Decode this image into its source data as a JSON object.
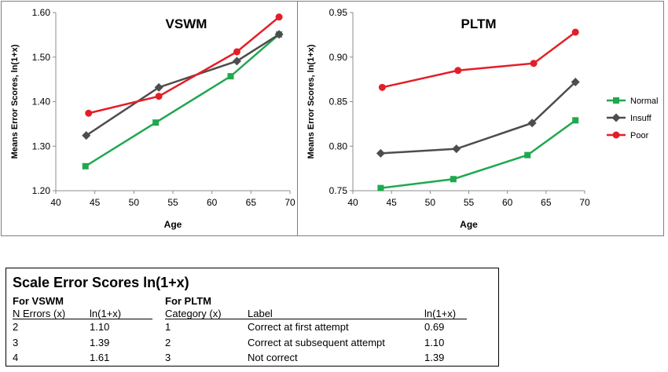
{
  "chart_data": [
    {
      "type": "line",
      "title": "VSWM",
      "xlabel": "Age",
      "ylabel": "Means Error Scores, ln(1+x)",
      "xlim": [
        40,
        70
      ],
      "ylim": [
        1.2,
        1.6
      ],
      "xticks": [
        "40",
        "45",
        "50",
        "55",
        "60",
        "65",
        "70"
      ],
      "yticks": [
        "1.20",
        "1.30",
        "1.40",
        "1.50",
        "1.60"
      ],
      "series": [
        {
          "name": "Normal",
          "color": "#1fa84f",
          "marker": "square",
          "x": [
            43.8,
            52.8,
            62.4,
            68.6
          ],
          "y": [
            1.255,
            1.353,
            1.457,
            1.551
          ]
        },
        {
          "name": "Insuff",
          "color": "#4d4d4d",
          "marker": "diamond",
          "x": [
            43.9,
            53.2,
            63.2,
            68.6
          ],
          "y": [
            1.324,
            1.432,
            1.491,
            1.551
          ]
        },
        {
          "name": "Poor",
          "color": "#e41e26",
          "marker": "circle",
          "x": [
            44.2,
            53.2,
            63.2,
            68.6
          ],
          "y": [
            1.374,
            1.412,
            1.512,
            1.59
          ]
        }
      ]
    },
    {
      "type": "line",
      "title": "PLTM",
      "xlabel": "Age",
      "ylabel": "Means Error Scores, ln(1+x)",
      "xlim": [
        40,
        70
      ],
      "ylim": [
        0.75,
        0.95
      ],
      "xticks": [
        "40",
        "45",
        "50",
        "55",
        "60",
        "65",
        "70"
      ],
      "yticks": [
        "0.75",
        "0.80",
        "0.85",
        "0.90",
        "0.95"
      ],
      "legend": "right",
      "series": [
        {
          "name": "Normal",
          "color": "#1fa84f",
          "marker": "square",
          "x": [
            43.6,
            53.0,
            62.6,
            68.8
          ],
          "y": [
            0.753,
            0.763,
            0.79,
            0.829
          ]
        },
        {
          "name": "Insuff",
          "color": "#4d4d4d",
          "marker": "diamond",
          "x": [
            43.6,
            53.4,
            63.2,
            68.8
          ],
          "y": [
            0.792,
            0.797,
            0.826,
            0.872
          ]
        },
        {
          "name": "Poor",
          "color": "#e41e26",
          "marker": "circle",
          "x": [
            43.8,
            53.6,
            63.4,
            68.8
          ],
          "y": [
            0.866,
            0.885,
            0.893,
            0.928
          ]
        }
      ]
    }
  ],
  "scale_table": {
    "title": "Scale Error Scores ln(1+x)",
    "vswm": {
      "heading": "For VSWM",
      "col1": "N Errors (x)",
      "col2": "ln(1+x)",
      "rows": [
        [
          "2",
          "1.10"
        ],
        [
          "3",
          "1.39"
        ],
        [
          "4",
          "1.61"
        ]
      ]
    },
    "pltm": {
      "heading": "For PLTM",
      "col1": "Category (x)",
      "col2": "Label",
      "col3": "ln(1+x)",
      "rows": [
        [
          "1",
          "Correct at first attempt",
          "0.69"
        ],
        [
          "2",
          "Correct at subsequent attempt",
          "1.10"
        ],
        [
          "3",
          "Not correct",
          "1.39"
        ]
      ]
    }
  }
}
